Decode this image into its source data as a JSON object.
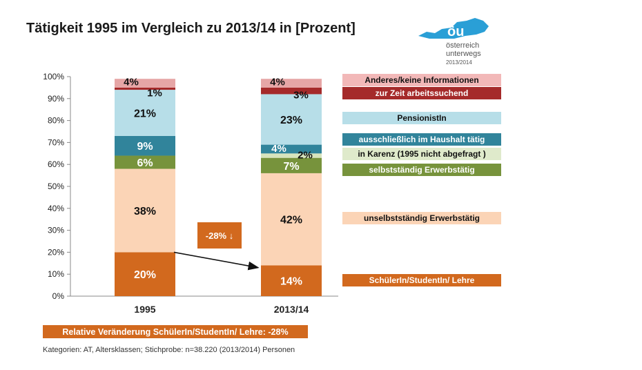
{
  "title": "Tätigkeit 1995 im Vergleich zu 2013/14 in [Prozent]",
  "logo": {
    "mark": "öu",
    "line1": "österreich",
    "line2": "unterwegs",
    "line3": "2013/2014",
    "color": "#2a9fd6"
  },
  "chart_data": {
    "type": "bar",
    "stacked": true,
    "categories": [
      "1995",
      "2013/14"
    ],
    "ylim": [
      0,
      100
    ],
    "yticks": [
      "0%",
      "10%",
      "20%",
      "30%",
      "40%",
      "50%",
      "60%",
      "70%",
      "80%",
      "90%",
      "100%"
    ],
    "series": [
      {
        "name": "SchülerIn/StudentIn/ Lehre",
        "values": [
          20,
          14
        ],
        "labels": [
          "20%",
          "14%"
        ],
        "color": "#d2691e",
        "text": "#ffffff"
      },
      {
        "name": "unselbstständig Erwerbstätig",
        "values": [
          38,
          42
        ],
        "labels": [
          "38%",
          "42%"
        ],
        "color": "#fbd4b6",
        "text": "#111111"
      },
      {
        "name": "selbstständig Erwerbstätig",
        "values": [
          6,
          7
        ],
        "labels": [
          "6%",
          "7%"
        ],
        "color": "#77933c",
        "text": "#ffffff"
      },
      {
        "name": "in Karenz (1995 nicht abgefragt )",
        "values": [
          0,
          2
        ],
        "labels": [
          "",
          "2%"
        ],
        "color": "#d7e4bd",
        "text": "#111111"
      },
      {
        "name": "ausschließlich im Haushalt tätig",
        "values": [
          9,
          4
        ],
        "labels": [
          "9%",
          "4%"
        ],
        "color": "#31849b",
        "text": "#ffffff"
      },
      {
        "name": "PensionistIn",
        "values": [
          21,
          23
        ],
        "labels": [
          "21%",
          "23%"
        ],
        "color": "#b7dee8",
        "text": "#111111"
      },
      {
        "name": "zur Zeit arbeitssuchend",
        "values": [
          1,
          3
        ],
        "labels": [
          "1%",
          "3%"
        ],
        "color": "#a52a2a",
        "text": "#111111"
      },
      {
        "name": "Anderes/keine Informationen",
        "values": [
          4,
          4
        ],
        "labels": [
          "4%",
          "4%"
        ],
        "color": "#e6a6a6",
        "text": "#111111"
      }
    ],
    "annotation": "-28% ↓"
  },
  "legend": [
    {
      "label": "Anderes/keine Informationen",
      "bg": "#f2b8b8",
      "fg": "#111111"
    },
    {
      "label": "zur Zeit arbeitssuchend",
      "bg": "#a52a2a",
      "fg": "#ffffff"
    },
    {
      "label": "PensionistIn",
      "bg": "#b7dee8",
      "fg": "#111111"
    },
    {
      "label": "ausschließlich im Haushalt tätig",
      "bg": "#31849b",
      "fg": "#ffffff"
    },
    {
      "label": "in Karenz (1995 nicht abgefragt )",
      "bg": "#dfeacb",
      "fg": "#111111"
    },
    {
      "label": "selbstständig Erwerbstätig",
      "bg": "#77933c",
      "fg": "#ffffff"
    },
    {
      "label": "unselbstständig Erwerbstätig",
      "bg": "#fbd4b6",
      "fg": "#111111"
    },
    {
      "label": "SchülerIn/StudentIn/ Lehre",
      "bg": "#d2691e",
      "fg": "#ffffff"
    }
  ],
  "footer_banner": "Relative Veränderung SchülerIn/StudentIn/ Lehre: -28%",
  "footnote": "Kategorien: AT, Altersklassen; Stichprobe: n=38.220 (2013/2014) Personen"
}
